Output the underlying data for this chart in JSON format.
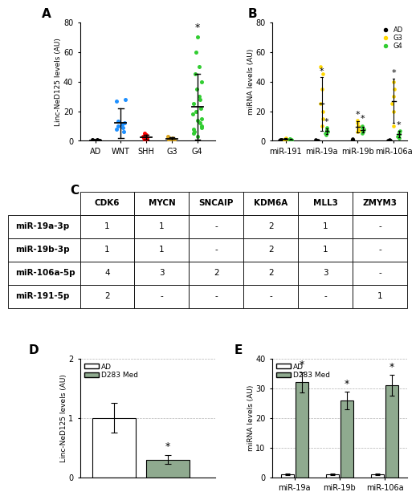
{
  "panel_A": {
    "title": "A",
    "ylabel": "Linc-NeD125 levels (AU)",
    "ylim": [
      0,
      80
    ],
    "yticks": [
      0,
      20,
      40,
      60,
      80
    ],
    "groups": [
      "AD",
      "WNT",
      "SHH",
      "G3",
      "G4"
    ],
    "colors": [
      "black",
      "#1E90FF",
      "red",
      "#DAA520",
      "#32CD32"
    ],
    "data": {
      "AD": [
        0.5,
        0.3,
        0.8,
        0.2,
        0.4,
        0.6
      ],
      "WNT": [
        8,
        12,
        11,
        9,
        27,
        28,
        6,
        10,
        13
      ],
      "SHH": [
        2,
        3,
        1,
        4,
        5,
        2,
        3,
        1,
        2,
        4
      ],
      "G3": [
        1,
        2,
        0.5,
        1.5,
        3,
        2,
        1
      ],
      "G4": [
        5,
        10,
        15,
        12,
        20,
        25,
        30,
        35,
        8,
        14,
        18,
        22,
        45,
        50,
        60,
        70,
        3,
        6,
        9,
        28,
        40
      ]
    },
    "means": {
      "AD": 0.5,
      "WNT": 12,
      "SHH": 2.5,
      "G3": 1.5,
      "G4": 23
    },
    "errors": {
      "AD": 0.3,
      "WNT": 10,
      "SHH": 1.5,
      "G3": 1.0,
      "G4": 22
    },
    "star_groups": [
      "G4"
    ]
  },
  "panel_B": {
    "title": "B",
    "ylabel": "miRNA levels (AU)",
    "ylim": [
      0,
      80
    ],
    "yticks": [
      0,
      20,
      40,
      60,
      80
    ],
    "groups": [
      "miR-191",
      "miR-19a",
      "miR-19b",
      "miR-106a"
    ],
    "legend": {
      "AD": "black",
      "G3": "#FFD700",
      "G4": "#32CD32"
    },
    "data": {
      "miR-191": {
        "AD": [
          0.5,
          1,
          0.8,
          0.3,
          0.6
        ],
        "G3": [
          1,
          2,
          0.5,
          1.5,
          0.8
        ],
        "G4": [
          0.5,
          1,
          1.5,
          0.8,
          1.2
        ]
      },
      "miR-19a": {
        "AD": [
          0.5,
          1,
          0.3
        ],
        "G3": [
          15,
          25,
          35,
          45,
          50,
          10,
          20
        ],
        "G4": [
          5,
          7,
          6,
          8,
          9,
          4
        ]
      },
      "miR-19b": {
        "AD": [
          0.5,
          1,
          0.8,
          1.2
        ],
        "G3": [
          7,
          10,
          12,
          8,
          6,
          14
        ],
        "G4": [
          5,
          7,
          9,
          6,
          8,
          10
        ]
      },
      "miR-106a": {
        "AD": [
          0.5,
          0.3,
          0.8
        ],
        "G3": [
          20,
          30,
          35,
          40,
          10,
          25
        ],
        "G4": [
          3,
          5,
          6,
          4,
          7,
          2
        ]
      }
    },
    "means": {
      "miR-191": {
        "AD": 0.6,
        "G3": 1.2,
        "G4": 1.0
      },
      "miR-19a": {
        "AD": 0.6,
        "G3": 25,
        "G4": 6.5
      },
      "miR-19b": {
        "AD": 0.9,
        "G3": 9.5,
        "G4": 7.5
      },
      "miR-106a": {
        "AD": 0.5,
        "G3": 27,
        "G4": 4.5
      }
    },
    "errors": {
      "miR-191": {
        "AD": 0.2,
        "G3": 0.5,
        "G4": 0.4
      },
      "miR-19a": {
        "AD": 0.3,
        "G3": 18,
        "G4": 2.0
      },
      "miR-19b": {
        "AD": 0.3,
        "G3": 4,
        "G4": 2.0
      },
      "miR-106a": {
        "AD": 0.2,
        "G3": 15,
        "G4": 2.0
      }
    }
  },
  "panel_C": {
    "title": "C",
    "rows": [
      "miR-19a-3p",
      "miR-19b-3p",
      "miR-106a-5p",
      "miR-191-5p"
    ],
    "cols": [
      "CDK6",
      "MYCN",
      "SNCAIP",
      "KDM6A",
      "MLL3",
      "ZMYM3"
    ],
    "data": [
      [
        "1",
        "1",
        "-",
        "2",
        "1",
        "-"
      ],
      [
        "1",
        "1",
        "-",
        "2",
        "1",
        "-"
      ],
      [
        "4",
        "3",
        "2",
        "2",
        "3",
        "-"
      ],
      [
        "2",
        "-",
        "-",
        "-",
        "-",
        "1"
      ]
    ]
  },
  "panel_D": {
    "title": "D",
    "ylabel": "Linc-NeD125 levels (AU)",
    "ylim": [
      0,
      2
    ],
    "yticks": [
      0,
      1,
      2
    ],
    "legend": [
      "AD",
      "D283 Med"
    ],
    "colors": [
      "white",
      "#8faa8f"
    ],
    "values": [
      1.0,
      0.3
    ],
    "errors": [
      0.25,
      0.08
    ],
    "star_bar": 1
  },
  "panel_E": {
    "title": "E",
    "ylabel": "miRNA levels (AU)",
    "ylim": [
      0,
      40
    ],
    "yticks": [
      0,
      10,
      20,
      30,
      40
    ],
    "groups": [
      "miR-19a",
      "miR-19b",
      "miR-106a"
    ],
    "legend": [
      "AD",
      "D283 Med"
    ],
    "colors": [
      "white",
      "#8faa8f"
    ],
    "values": {
      "miR-19a": [
        1.0,
        32
      ],
      "miR-19b": [
        1.0,
        26
      ],
      "miR-106a": [
        1.0,
        31
      ]
    },
    "errors": {
      "miR-19a": [
        0.2,
        3.5
      ],
      "miR-19b": [
        0.2,
        3.0
      ],
      "miR-106a": [
        0.2,
        3.5
      ]
    },
    "stars": [
      "miR-19a",
      "miR-19b",
      "miR-106a"
    ]
  }
}
